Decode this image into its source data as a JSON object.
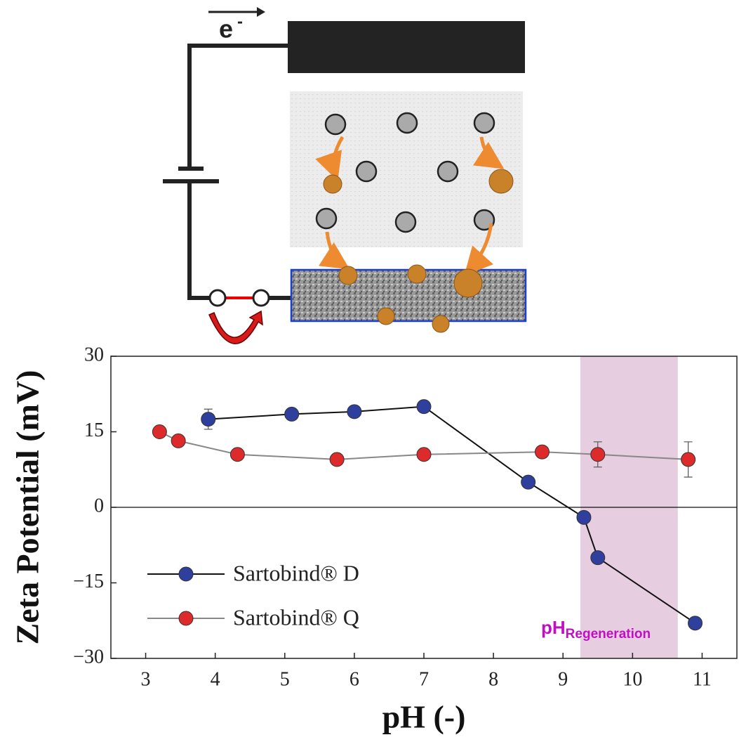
{
  "diagram": {
    "electron": "e",
    "electron_charge": "-"
  },
  "chart_data": {
    "type": "line",
    "x_label": "pH (-)",
    "y_label": "Zeta Potential (mV)",
    "xlim": [
      2.5,
      11.5
    ],
    "ylim": [
      -30,
      30
    ],
    "xticks": [
      3,
      4,
      5,
      6,
      7,
      8,
      9,
      10,
      11
    ],
    "yticks": [
      {
        "value": -30,
        "label": "−30"
      },
      {
        "value": -15,
        "label": "−15"
      },
      0,
      15,
      30
    ],
    "hline": 0,
    "grid": false,
    "legend": "lower left",
    "shaded_region": {
      "xrange": [
        9.25,
        10.65
      ],
      "color": "#e6cde0",
      "label": "pH",
      "label_sub": "Regeneration",
      "label_color": "#c010c0"
    },
    "series": [
      {
        "name": "Sartobind® D",
        "color": "#2f3f9e",
        "line_color": "#111111",
        "x": [
          3.9,
          5.1,
          6,
          7,
          8.5,
          9.3,
          9.5,
          10.9
        ],
        "values": [
          17.5,
          18.5,
          19,
          20,
          5,
          -2,
          -10,
          -23
        ],
        "errors": [
          2,
          1,
          null,
          null,
          null,
          null,
          null,
          null
        ]
      },
      {
        "name": "Sartobind® Q",
        "color": "#dd2a2a",
        "line_color": "#888888",
        "x": [
          3.2,
          3.47,
          4.32,
          5.75,
          7,
          8.7,
          9.5,
          10.8
        ],
        "values": [
          15,
          13.2,
          10.5,
          9.5,
          10.5,
          11,
          10.5,
          9.5
        ],
        "errors": [
          null,
          null,
          null,
          null,
          null,
          null,
          2.5,
          3.5
        ]
      }
    ]
  }
}
